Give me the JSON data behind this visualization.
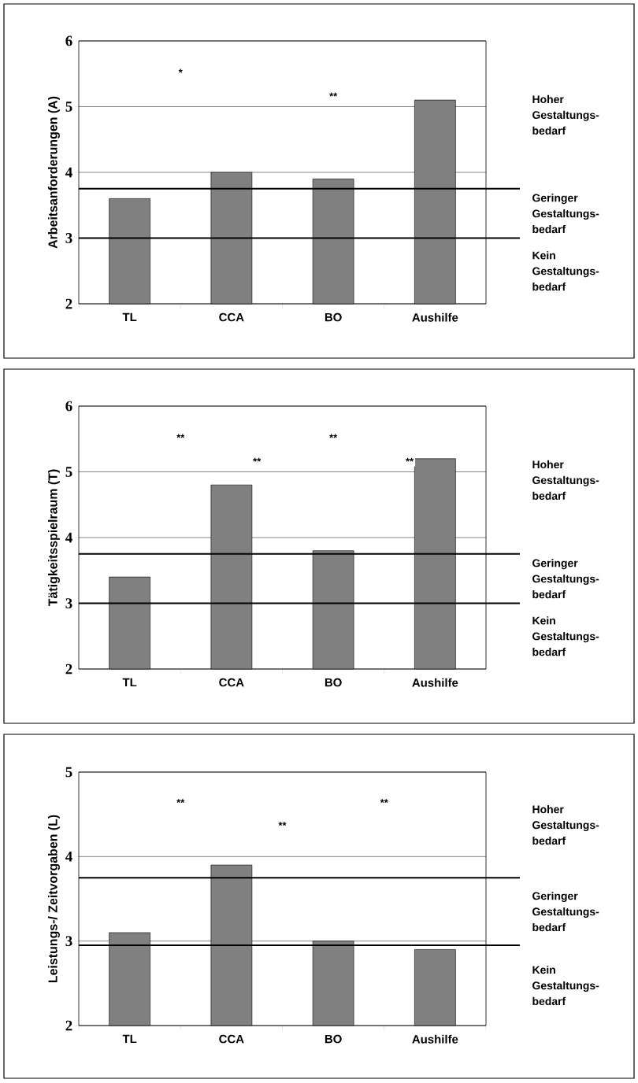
{
  "chart_data": [
    {
      "type": "bar",
      "ylabel": "Arbeitsanforderungen (A)",
      "categories": [
        "TL",
        "CCA",
        "BO",
        "Aushilfe"
      ],
      "values": [
        3.6,
        4.0,
        3.9,
        5.1
      ],
      "color": "#808080",
      "ylim": [
        2,
        6
      ],
      "yticks": [
        2,
        3,
        4,
        5,
        6
      ],
      "grid": "y",
      "ref_lines": [
        {
          "axis": "y",
          "value": 3.75
        },
        {
          "axis": "y",
          "value": 3.0
        }
      ],
      "annotations": [
        "*",
        "**",
        "Hoher Gestaltungs-bedarf",
        "Geringer Gestaltungs-bedarf",
        "Kein Gestaltungs-bedarf"
      ]
    },
    {
      "type": "bar",
      "ylabel": "Tätigkeitsspielraum (T)",
      "categories": [
        "TL",
        "CCA",
        "BO",
        "Aushilfe"
      ],
      "values": [
        3.4,
        4.8,
        3.8,
        5.2
      ],
      "color": "#808080",
      "ylim": [
        2,
        6
      ],
      "yticks": [
        2,
        3,
        4,
        5,
        6
      ],
      "grid": "y",
      "ref_lines": [
        {
          "axis": "y",
          "value": 3.75
        },
        {
          "axis": "y",
          "value": 3.0
        }
      ],
      "annotations": [
        "**",
        "**",
        "**",
        "**",
        "Hoher Gestaltungs-bedarf",
        "Geringer Gestaltungs-bedarf",
        "Kein Gestaltungs-bedarf"
      ]
    },
    {
      "type": "bar",
      "ylabel": "Leistungs-/ Zeitvorgaben (L)",
      "categories": [
        "TL",
        "CCA",
        "BO",
        "Aushilfe"
      ],
      "values": [
        3.1,
        3.9,
        3.0,
        2.9
      ],
      "color": "#808080",
      "ylim": [
        2,
        5
      ],
      "yticks": [
        2,
        3,
        4,
        5
      ],
      "grid": "y",
      "ref_lines": [
        {
          "axis": "y",
          "value": 3.75
        },
        {
          "axis": "y",
          "value": 2.95
        }
      ],
      "annotations": [
        "**",
        "**",
        "**",
        "Hoher Gestaltungs-bedarf",
        "Geringer Gestaltungs-bedarf",
        "Kein Gestaltungs-bedarf"
      ]
    }
  ]
}
